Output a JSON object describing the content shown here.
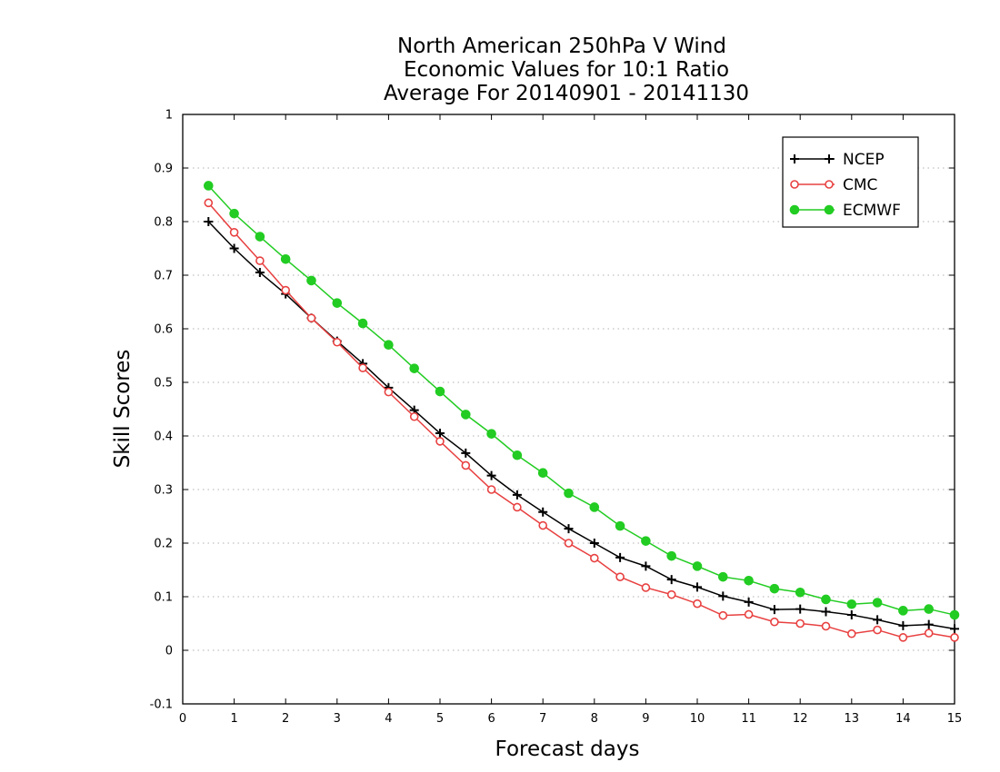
{
  "chart_data": {
    "type": "line",
    "title_lines": [
      "North American 250hPa V Wind",
      "Economic Values for 10:1 Ratio",
      "Average For 20140901 - 20141130"
    ],
    "xlabel": "Forecast days",
    "ylabel": "Skill Scores",
    "xlim": [
      0,
      15
    ],
    "ylim": [
      -0.1,
      1
    ],
    "x_ticks": [
      0,
      1,
      2,
      3,
      4,
      5,
      6,
      7,
      8,
      9,
      10,
      11,
      12,
      13,
      14,
      15
    ],
    "y_ticks": [
      -0.1,
      0,
      0.1,
      0.2,
      0.3,
      0.4,
      0.5,
      0.6,
      0.7,
      0.8,
      0.9,
      1
    ],
    "y_tick_labels": [
      "-0.1",
      "0",
      "0.1",
      "0.2",
      "0.3",
      "0.4",
      "0.5",
      "0.6",
      "0.7",
      "0.8",
      "0.9",
      "1"
    ],
    "grid": "horizontal dotted",
    "legend_position": "top-right",
    "x": [
      0.5,
      1,
      1.5,
      2,
      2.5,
      3,
      3.5,
      4,
      4.5,
      5,
      5.5,
      6,
      6.5,
      7,
      7.5,
      8,
      8.5,
      9,
      9.5,
      10,
      10.5,
      11,
      11.5,
      12,
      12.5,
      13,
      13.5,
      14,
      14.5,
      15
    ],
    "series": [
      {
        "name": "NCEP",
        "color": "#000000",
        "marker": "plus",
        "values": [
          0.8,
          0.75,
          0.705,
          0.665,
          0.62,
          0.577,
          0.535,
          0.49,
          0.448,
          0.405,
          0.368,
          0.326,
          0.29,
          0.258,
          0.227,
          0.2,
          0.173,
          0.157,
          0.132,
          0.118,
          0.101,
          0.09,
          0.076,
          0.077,
          0.072,
          0.066,
          0.057,
          0.046,
          0.048,
          0.04
        ]
      },
      {
        "name": "CMC",
        "color": "#e84040",
        "marker": "open-circle",
        "values": [
          0.835,
          0.78,
          0.727,
          0.672,
          0.62,
          0.575,
          0.527,
          0.482,
          0.436,
          0.39,
          0.345,
          0.3,
          0.267,
          0.233,
          0.2,
          0.172,
          0.137,
          0.117,
          0.104,
          0.087,
          0.065,
          0.067,
          0.053,
          0.05,
          0.045,
          0.031,
          0.038,
          0.024,
          0.032,
          0.024
        ]
      },
      {
        "name": "ECMWF",
        "color": "#22cc22",
        "marker": "filled-circle",
        "values": [
          0.867,
          0.815,
          0.772,
          0.73,
          0.69,
          0.648,
          0.61,
          0.57,
          0.526,
          0.483,
          0.44,
          0.404,
          0.364,
          0.331,
          0.293,
          0.267,
          0.232,
          0.204,
          0.176,
          0.157,
          0.137,
          0.13,
          0.115,
          0.108,
          0.095,
          0.086,
          0.089,
          0.074,
          0.077,
          0.066
        ]
      }
    ]
  }
}
